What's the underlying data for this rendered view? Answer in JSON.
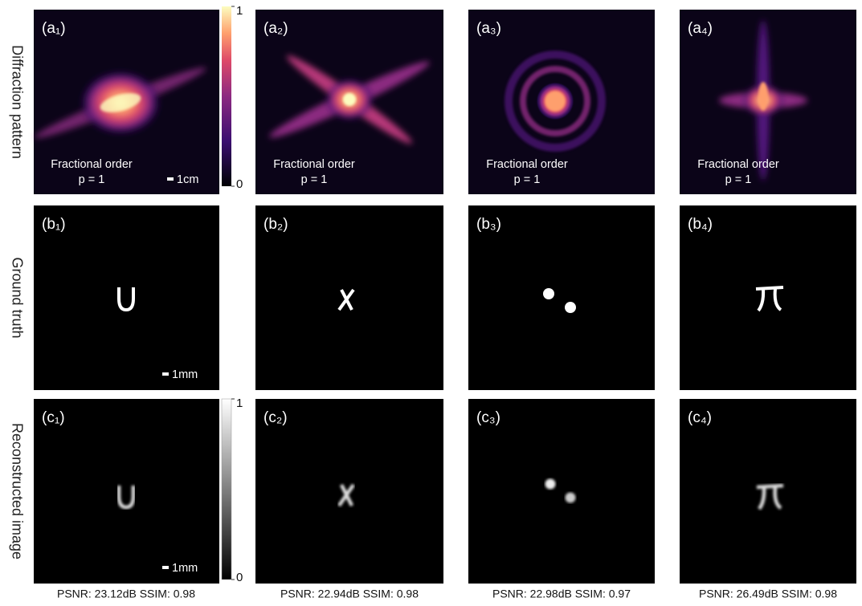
{
  "row_labels": [
    "Diffraction pattern",
    "Ground truth",
    "Reconstructed image"
  ],
  "diffraction": [
    {
      "label": "(a₁)",
      "note": "Fractional order",
      "order": "p = 1"
    },
    {
      "label": "(a₂)",
      "note": "Fractional order",
      "order": "p = 1"
    },
    {
      "label": "(a₃)",
      "note": "Fractional order",
      "order": "p = 1"
    },
    {
      "label": "(a₄)",
      "note": "Fractional order",
      "order": "p = 1"
    }
  ],
  "ground_truth": [
    {
      "label": "(b₁)"
    },
    {
      "label": "(b₂)"
    },
    {
      "label": "(b₃)"
    },
    {
      "label": "(b₄)"
    }
  ],
  "reconstruction": [
    {
      "label": "(c₁)",
      "metrics": "PSNR: 23.12dB SSIM: 0.98"
    },
    {
      "label": "(c₂)",
      "metrics": "PSNR: 22.94dB SSIM: 0.98"
    },
    {
      "label": "(c₃)",
      "metrics": "PSNR: 22.98dB SSIM: 0.97"
    },
    {
      "label": "(c₄)",
      "metrics": "PSNR: 26.49dB SSIM: 0.98"
    }
  ],
  "scale_bars": [
    "1cm",
    "1mm",
    "1mm"
  ],
  "colorbars": [
    {
      "range": [
        0,
        1
      ],
      "ticks": [
        0,
        1
      ]
    },
    {
      "range": [
        0,
        1
      ],
      "ticks": [
        0,
        1
      ]
    }
  ]
}
